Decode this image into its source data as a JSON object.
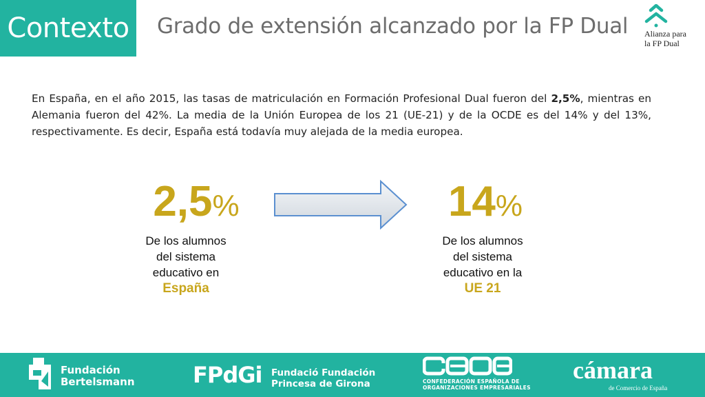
{
  "header": {
    "section_label": "Contexto",
    "title": "Grado de extensión alcanzado por la FP Dual",
    "logo": {
      "line1": "Alianza para",
      "line2": "la FP Dual",
      "icon": "alliance-chevrons-icon",
      "color": "#22b3a0"
    }
  },
  "intro": {
    "part1": "En España, en el año 2015, las tasas de matriculación en Formación Profesional Dual fueron del ",
    "bold": "2,5%",
    "part2": ", mientras en Alemania fueron del 42%. La media de la Unión Europea de los 21 (UE-21) y de la OCDE es del 14% y del 13%, respectivamente. Es decir, España está todavía muy alejada de la media europea."
  },
  "stats": [
    {
      "value": "2,5",
      "unit": "%",
      "desc": "De los alumnos del sistema educativo en",
      "highlight": "España"
    },
    {
      "value": "14",
      "unit": "%",
      "desc": "De los alumnos del sistema educativo en la",
      "highlight": "UE 21"
    }
  ],
  "arrow": {
    "icon": "right-arrow-icon"
  },
  "footer": {
    "bertelsmann": {
      "line1": "Fundación",
      "line2": "Bertelsmann",
      "icon": "bertelsmann-icon"
    },
    "fpdgi": {
      "mark": "FPdGi",
      "line1": "Fundació Fundación",
      "line2": "Princesa de Girona"
    },
    "ceoe": {
      "mark": "ceoe",
      "line1": "CONFEDERACIÓN ESPAÑOLA DE",
      "line2": "ORGANIZACIONES EMPRESARIALES"
    },
    "camara": {
      "mark": "cámara",
      "sub": "de Comercio de España"
    }
  },
  "colors": {
    "accent": "#22b3a0",
    "gold": "#c8a61c",
    "title_gray": "#6d6d6d"
  }
}
